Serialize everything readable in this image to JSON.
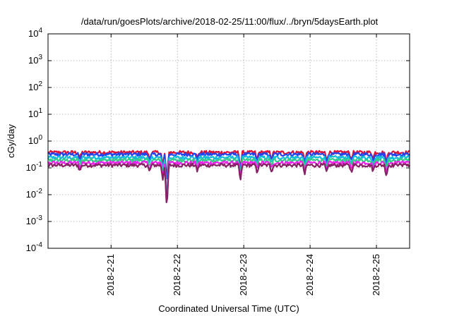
{
  "chart_data": {
    "type": "line",
    "title": "/data/run/goesPlots/archive/2018-02-25/11:00/flux/../bryn/5daysEarth.plot",
    "xlabel": "Coordinated Universal Time (UTC)",
    "ylabel": "cGy/day",
    "yscale": "log",
    "ylim": [
      0.0001,
      10000
    ],
    "xlim": [
      -0.95,
      4.5
    ],
    "grid": true,
    "y_ticks": [
      {
        "value": 0.0001,
        "base": "10",
        "exp": "-4"
      },
      {
        "value": 0.001,
        "base": "10",
        "exp": "-3"
      },
      {
        "value": 0.01,
        "base": "10",
        "exp": "-2"
      },
      {
        "value": 0.1,
        "base": "10",
        "exp": "-1"
      },
      {
        "value": 1,
        "base": "10",
        "exp": "0"
      },
      {
        "value": 10,
        "base": "10",
        "exp": "1"
      },
      {
        "value": 100,
        "base": "10",
        "exp": "2"
      },
      {
        "value": 1000,
        "base": "10",
        "exp": "3"
      },
      {
        "value": 10000,
        "base": "10",
        "exp": "4"
      }
    ],
    "x_ticks": [
      {
        "value": 0,
        "label": "2018-2-21"
      },
      {
        "value": 1,
        "label": "2018-2-22"
      },
      {
        "value": 2,
        "label": "2018-2-23"
      },
      {
        "value": 3,
        "label": "2018-2-24"
      },
      {
        "value": 4,
        "label": "2018-2-25"
      }
    ],
    "series": [
      {
        "color": "#dd1133",
        "base": 0.39
      },
      {
        "color": "#2244ee",
        "base": 0.33
      },
      {
        "color": "#11bbdd",
        "base": 0.25
      },
      {
        "color": "#33cc88",
        "base": 0.2
      },
      {
        "color": "#ee22ee",
        "base": 0.16
      },
      {
        "color": "#882266",
        "base": 0.13
      }
    ],
    "dips": [
      {
        "x": -0.47,
        "factor": 0.6
      },
      {
        "x": 0.58,
        "factor": 0.55
      },
      {
        "x": 0.78,
        "factor": 0.3
      },
      {
        "x": 0.84,
        "factor": 0.018
      },
      {
        "x": 1.3,
        "factor": 0.6
      },
      {
        "x": 1.95,
        "factor": 0.25
      },
      {
        "x": 2.2,
        "factor": 0.55
      },
      {
        "x": 2.42,
        "factor": 0.6
      },
      {
        "x": 2.92,
        "factor": 0.45
      },
      {
        "x": 3.25,
        "factor": 0.5
      },
      {
        "x": 3.62,
        "factor": 0.55
      },
      {
        "x": 3.95,
        "factor": 0.6
      },
      {
        "x": 4.15,
        "factor": 0.4
      }
    ]
  }
}
